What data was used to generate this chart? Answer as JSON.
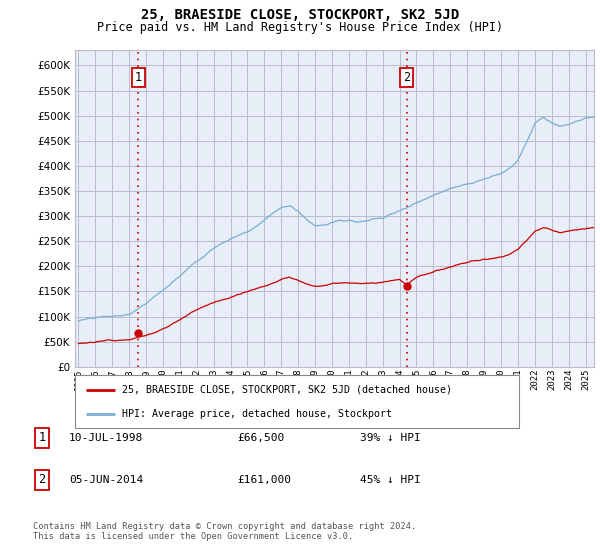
{
  "title": "25, BRAESIDE CLOSE, STOCKPORT, SK2 5JD",
  "subtitle": "Price paid vs. HM Land Registry's House Price Index (HPI)",
  "ytick_values": [
    0,
    50000,
    100000,
    150000,
    200000,
    250000,
    300000,
    350000,
    400000,
    450000,
    500000,
    550000,
    600000
  ],
  "ylim": [
    0,
    630000
  ],
  "purchase1": {
    "date_num": 1998.53,
    "price": 66500,
    "label": "1",
    "date_str": "10-JUL-1998",
    "price_str": "£66,500",
    "hpi_str": "39% ↓ HPI"
  },
  "purchase2": {
    "date_num": 2014.43,
    "price": 161000,
    "label": "2",
    "date_str": "05-JUN-2014",
    "price_str": "£161,000",
    "hpi_str": "45% ↓ HPI"
  },
  "xmin": 1994.8,
  "xmax": 2025.5,
  "red_line_color": "#cc0000",
  "blue_line_color": "#7aafd4",
  "vline_color": "#cc0000",
  "grid_color": "#bbbbcc",
  "plot_bg_color": "#e8eef8",
  "background_color": "#ffffff",
  "legend_label1": "25, BRAESIDE CLOSE, STOCKPORT, SK2 5JD (detached house)",
  "legend_label2": "HPI: Average price, detached house, Stockport",
  "footnote": "Contains HM Land Registry data © Crown copyright and database right 2024.\nThis data is licensed under the Open Government Licence v3.0."
}
